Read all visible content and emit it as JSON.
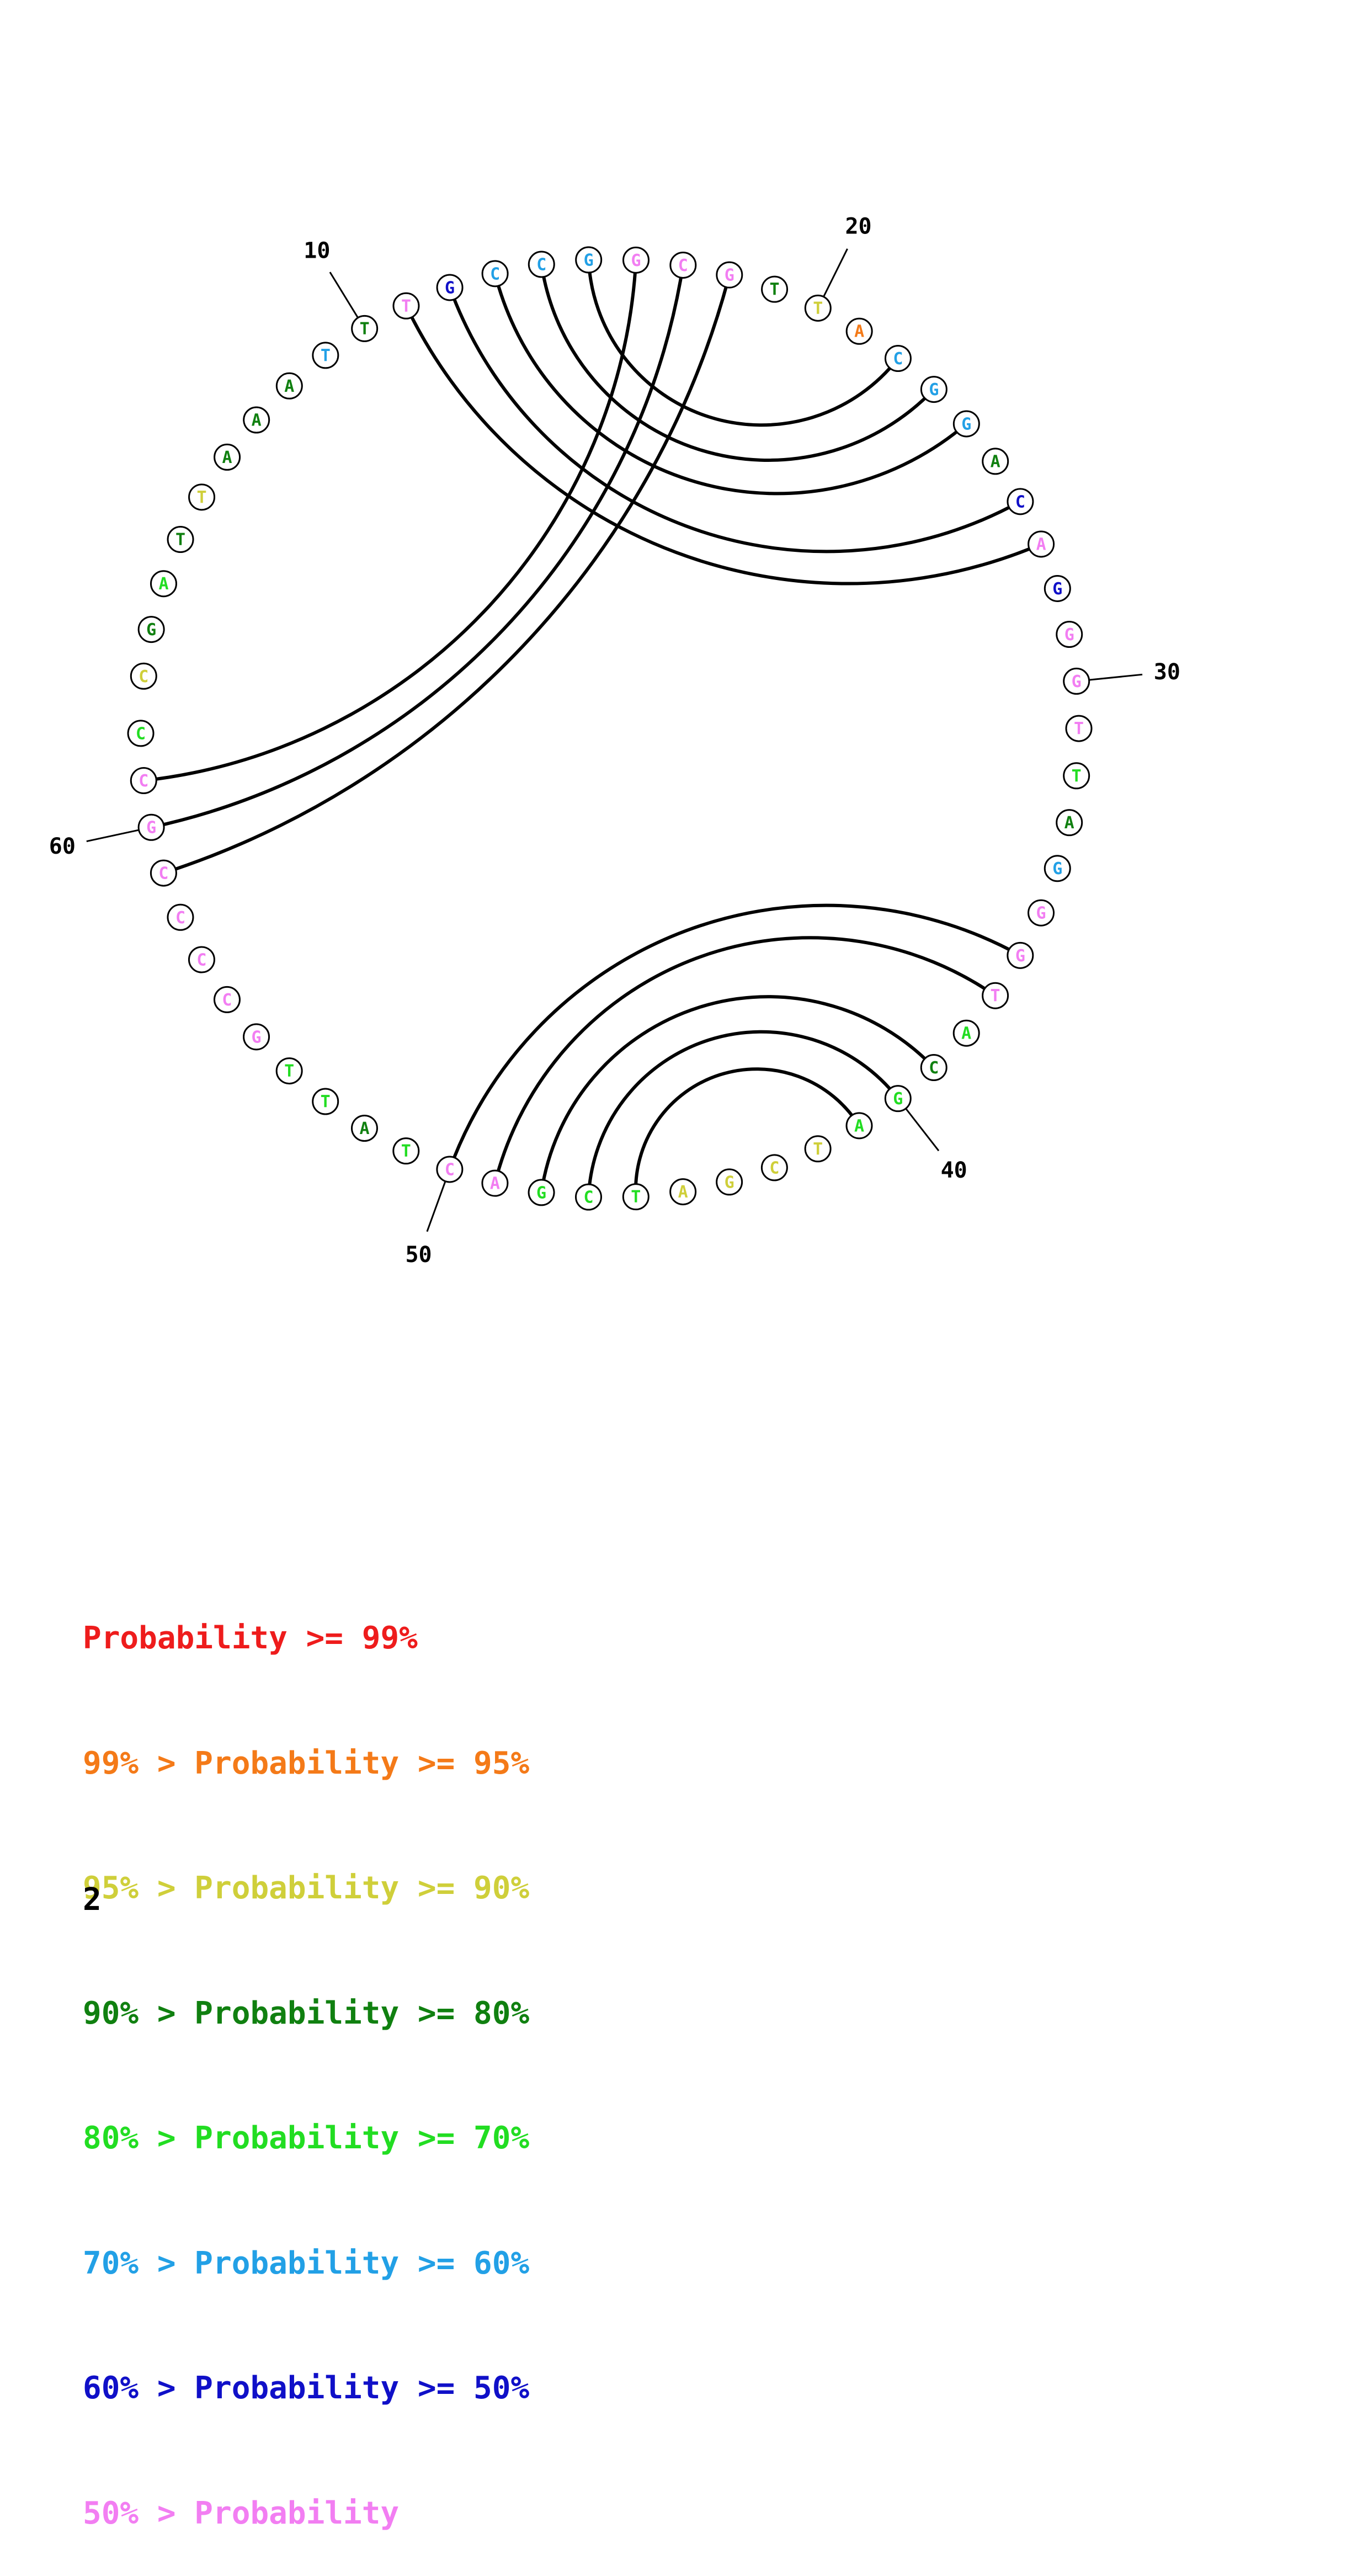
{
  "colors": {
    "p99": "#ee1c1c",
    "p95": "#f47a18",
    "p90": "#cfcf3a",
    "p80": "#108010",
    "p70": "#22dd22",
    "p60": "#22a0e6",
    "p50": "#1010c8",
    "p0": "#f27ef2"
  },
  "structure": {
    "nucleotides": [
      {
        "n": 1,
        "base": "C",
        "tier": "p90"
      },
      {
        "n": 2,
        "base": "G",
        "tier": "p80"
      },
      {
        "n": 3,
        "base": "A",
        "tier": "p70"
      },
      {
        "n": 4,
        "base": "T",
        "tier": "p80"
      },
      {
        "n": 5,
        "base": "T",
        "tier": "p90"
      },
      {
        "n": 6,
        "base": "A",
        "tier": "p80"
      },
      {
        "n": 7,
        "base": "A",
        "tier": "p80"
      },
      {
        "n": 8,
        "base": "A",
        "tier": "p80"
      },
      {
        "n": 9,
        "base": "T",
        "tier": "p60"
      },
      {
        "n": 10,
        "base": "T",
        "tier": "p80"
      },
      {
        "n": 11,
        "base": "T",
        "tier": "p0"
      },
      {
        "n": 12,
        "base": "G",
        "tier": "p50"
      },
      {
        "n": 13,
        "base": "C",
        "tier": "p60"
      },
      {
        "n": 14,
        "base": "C",
        "tier": "p60"
      },
      {
        "n": 15,
        "base": "G",
        "tier": "p60"
      },
      {
        "n": 16,
        "base": "G",
        "tier": "p0"
      },
      {
        "n": 17,
        "base": "C",
        "tier": "p0"
      },
      {
        "n": 18,
        "base": "G",
        "tier": "p0"
      },
      {
        "n": 19,
        "base": "T",
        "tier": "p80"
      },
      {
        "n": 20,
        "base": "T",
        "tier": "p90"
      },
      {
        "n": 21,
        "base": "A",
        "tier": "p95"
      },
      {
        "n": 22,
        "base": "C",
        "tier": "p60"
      },
      {
        "n": 23,
        "base": "G",
        "tier": "p60"
      },
      {
        "n": 24,
        "base": "G",
        "tier": "p60"
      },
      {
        "n": 25,
        "base": "A",
        "tier": "p80"
      },
      {
        "n": 26,
        "base": "C",
        "tier": "p50"
      },
      {
        "n": 27,
        "base": "A",
        "tier": "p0"
      },
      {
        "n": 28,
        "base": "G",
        "tier": "p50"
      },
      {
        "n": 29,
        "base": "G",
        "tier": "p0"
      },
      {
        "n": 30,
        "base": "G",
        "tier": "p0"
      },
      {
        "n": 31,
        "base": "T",
        "tier": "p0"
      },
      {
        "n": 32,
        "base": "T",
        "tier": "p70"
      },
      {
        "n": 33,
        "base": "A",
        "tier": "p80"
      },
      {
        "n": 34,
        "base": "G",
        "tier": "p60"
      },
      {
        "n": 35,
        "base": "G",
        "tier": "p0"
      },
      {
        "n": 36,
        "base": "G",
        "tier": "p0"
      },
      {
        "n": 37,
        "base": "T",
        "tier": "p0"
      },
      {
        "n": 38,
        "base": "A",
        "tier": "p70"
      },
      {
        "n": 39,
        "base": "C",
        "tier": "p80"
      },
      {
        "n": 40,
        "base": "G",
        "tier": "p70"
      },
      {
        "n": 41,
        "base": "A",
        "tier": "p70"
      },
      {
        "n": 42,
        "base": "T",
        "tier": "p90"
      },
      {
        "n": 43,
        "base": "C",
        "tier": "p90"
      },
      {
        "n": 44,
        "base": "G",
        "tier": "p90"
      },
      {
        "n": 45,
        "base": "A",
        "tier": "p90"
      },
      {
        "n": 46,
        "base": "T",
        "tier": "p70"
      },
      {
        "n": 47,
        "base": "C",
        "tier": "p70"
      },
      {
        "n": 48,
        "base": "G",
        "tier": "p70"
      },
      {
        "n": 49,
        "base": "A",
        "tier": "p0"
      },
      {
        "n": 50,
        "base": "C",
        "tier": "p0"
      },
      {
        "n": 51,
        "base": "T",
        "tier": "p70"
      },
      {
        "n": 52,
        "base": "A",
        "tier": "p80"
      },
      {
        "n": 53,
        "base": "T",
        "tier": "p70"
      },
      {
        "n": 54,
        "base": "T",
        "tier": "p70"
      },
      {
        "n": 55,
        "base": "G",
        "tier": "p0"
      },
      {
        "n": 56,
        "base": "C",
        "tier": "p0"
      },
      {
        "n": 57,
        "base": "C",
        "tier": "p0"
      },
      {
        "n": 58,
        "base": "C",
        "tier": "p0"
      },
      {
        "n": 59,
        "base": "C",
        "tier": "p0"
      },
      {
        "n": 60,
        "base": "G",
        "tier": "p0"
      },
      {
        "n": 61,
        "base": "C",
        "tier": "p0"
      },
      {
        "n": 62,
        "base": "C",
        "tier": "p70"
      }
    ],
    "pairs": [
      [
        11,
        27
      ],
      [
        12,
        26
      ],
      [
        13,
        24
      ],
      [
        14,
        23
      ],
      [
        15,
        22
      ],
      [
        16,
        61
      ],
      [
        17,
        60
      ],
      [
        18,
        59
      ],
      [
        36,
        50
      ],
      [
        37,
        49
      ],
      [
        39,
        48
      ],
      [
        40,
        47
      ],
      [
        41,
        46
      ]
    ],
    "position_labels": [
      10,
      20,
      30,
      40,
      50,
      60
    ]
  },
  "legend": {
    "rows": [
      {
        "prefix": "",
        "text": "Probability >= 99%",
        "color": "#ee1c1c"
      },
      {
        "prefix": "99% > ",
        "text": "Probability >= 95%",
        "color": "#f47a18"
      },
      {
        "prefix": "95% > ",
        "text": "Probability >= 90%",
        "color": "#cfcf3a"
      },
      {
        "prefix": "90% > ",
        "text": "Probability >= 80%",
        "color": "#108010"
      },
      {
        "prefix": "80% > ",
        "text": "Probability >= 70%",
        "color": "#22dd22"
      },
      {
        "prefix": "70% > ",
        "text": "Probability >= 60%",
        "color": "#22a0e6"
      },
      {
        "prefix": "60% > ",
        "text": "Probability >= 50%",
        "color": "#1010c8"
      },
      {
        "prefix": "50% > ",
        "text": "Probability",
        "color": "#f27ef2"
      }
    ]
  },
  "page": {
    "number": "2"
  }
}
